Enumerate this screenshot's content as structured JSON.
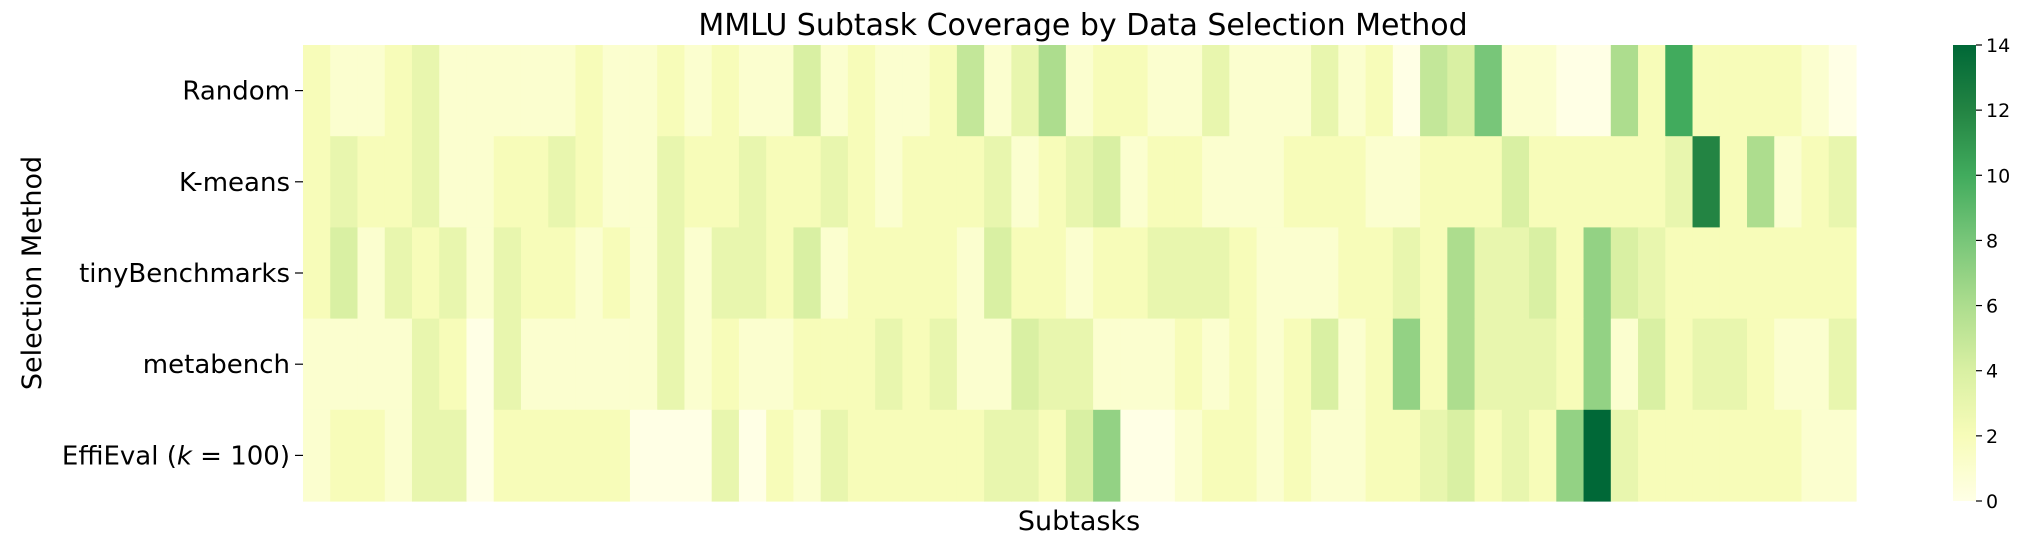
{
  "chart_data": {
    "type": "heatmap",
    "title": "MMLU Subtask Coverage by Data Selection Method",
    "xlabel": "Subtasks",
    "ylabel": "Selection Method",
    "rows": [
      "Random",
      "K-means",
      "tinyBenchmarks",
      "metabench",
      "EffiEval (k=100)"
    ],
    "row_tick_parts": [
      {
        "text": "Random"
      },
      {
        "text": "K-means"
      },
      {
        "text": "tinyBenchmarks"
      },
      {
        "text": "metabench"
      },
      {
        "text": "EffiEval (",
        "italic": "k",
        "rest": " = 100)"
      }
    ],
    "n_columns": 57,
    "values": [
      [
        2,
        1,
        1,
        2,
        3,
        1,
        1,
        1,
        1,
        1,
        2,
        1,
        1,
        2,
        1,
        2,
        1,
        1,
        4,
        1,
        2,
        1,
        1,
        2,
        5,
        1,
        3,
        6,
        1,
        2,
        2,
        1,
        1,
        3,
        1,
        1,
        1,
        3,
        1,
        2,
        0,
        5,
        4,
        8,
        1,
        1,
        0,
        0,
        6,
        2,
        10,
        2,
        2,
        2,
        2,
        1,
        0
      ],
      [
        2,
        3,
        2,
        2,
        3,
        1,
        1,
        2,
        2,
        3,
        2,
        1,
        1,
        3,
        2,
        2,
        3,
        2,
        2,
        3,
        2,
        1,
        2,
        2,
        2,
        3,
        1,
        2,
        3,
        4,
        1,
        2,
        2,
        1,
        1,
        1,
        2,
        2,
        2,
        1,
        1,
        2,
        2,
        2,
        4,
        2,
        2,
        2,
        2,
        2,
        3,
        12,
        2,
        6,
        1,
        2,
        3
      ],
      [
        2,
        4,
        1,
        3,
        2,
        3,
        1,
        3,
        2,
        2,
        1,
        2,
        1,
        3,
        1,
        3,
        3,
        2,
        4,
        1,
        2,
        2,
        2,
        2,
        1,
        4,
        2,
        2,
        1,
        2,
        2,
        3,
        3,
        3,
        2,
        1,
        1,
        1,
        2,
        2,
        3,
        2,
        6,
        3,
        3,
        4,
        2,
        7,
        4,
        3,
        2,
        2,
        2,
        2,
        2,
        2,
        2
      ],
      [
        1,
        1,
        1,
        1,
        3,
        2,
        0,
        3,
        1,
        1,
        1,
        1,
        1,
        3,
        1,
        2,
        1,
        1,
        2,
        2,
        2,
        3,
        2,
        3,
        1,
        1,
        4,
        3,
        3,
        1,
        1,
        1,
        2,
        1,
        2,
        1,
        2,
        4,
        1,
        2,
        7,
        2,
        6,
        3,
        3,
        3,
        2,
        7,
        1,
        4,
        2,
        3,
        3,
        2,
        1,
        1,
        3
      ],
      [
        1,
        2,
        2,
        1,
        3,
        3,
        0,
        2,
        2,
        2,
        2,
        2,
        0,
        0,
        0,
        3,
        0,
        2,
        1,
        3,
        2,
        2,
        2,
        2,
        2,
        3,
        3,
        2,
        4,
        7,
        0,
        0,
        1,
        2,
        2,
        1,
        2,
        1,
        1,
        2,
        2,
        3,
        4,
        2,
        3,
        2,
        7,
        14,
        3,
        2,
        2,
        2,
        2,
        2,
        2,
        1,
        1
      ]
    ],
    "colorbar": {
      "min": 0,
      "max": 14,
      "ticks": [
        0,
        2,
        4,
        6,
        8,
        10,
        12,
        14
      ],
      "colormap": [
        "#ffffe5",
        "#f7fcb9",
        "#d9f0a3",
        "#addd8e",
        "#78c679",
        "#41ab5d",
        "#238443",
        "#006837"
      ]
    }
  }
}
